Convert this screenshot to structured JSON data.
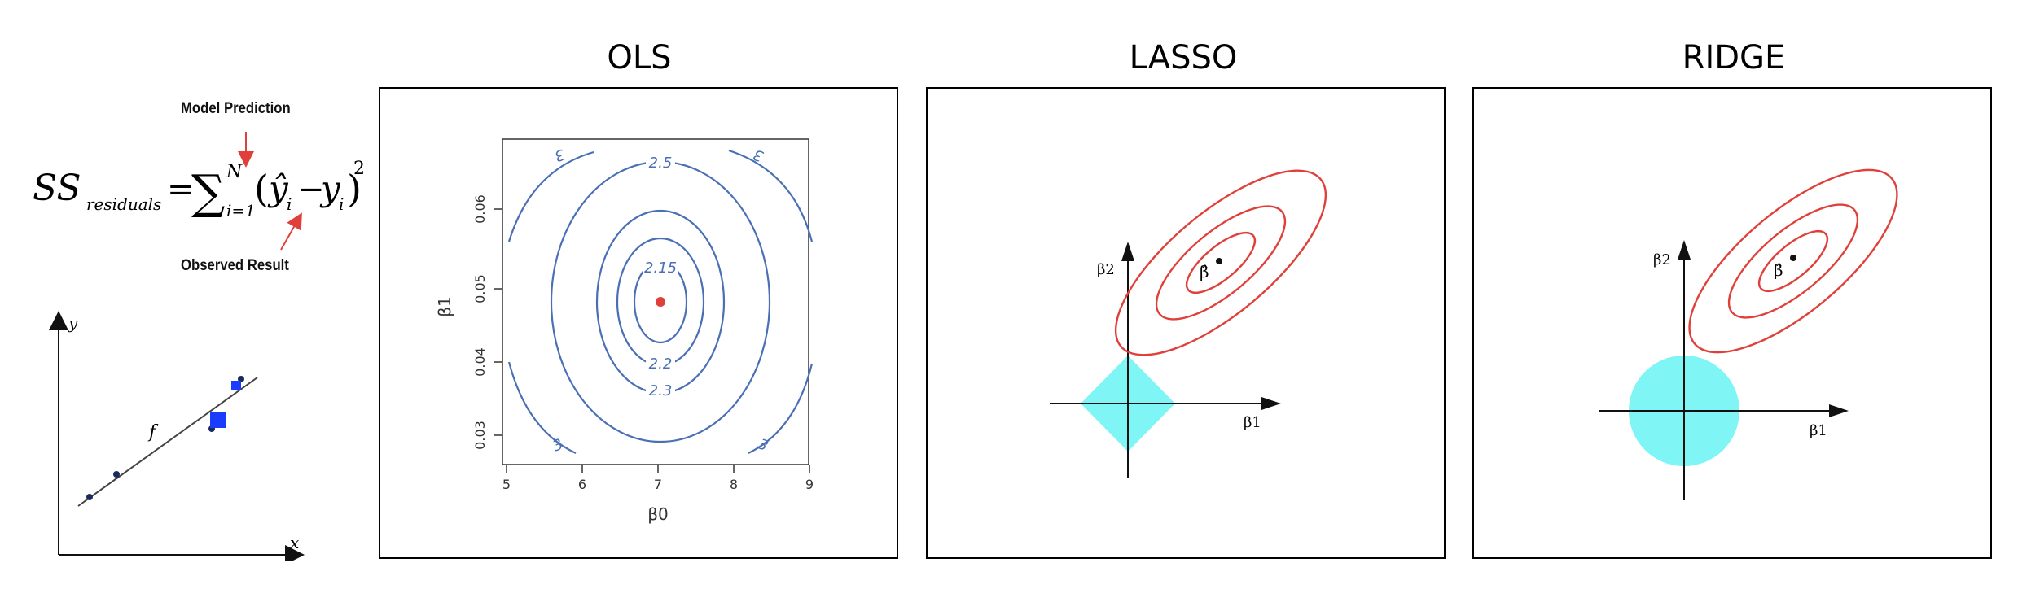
{
  "formula": {
    "lhs": "SS",
    "lhs_subscript": "residuals",
    "equals": "=",
    "sum_symbol": "∑",
    "sum_lower": "i=1",
    "sum_upper": "N",
    "open_paren": "(",
    "prediction_term": "ŷ",
    "prediction_sub": "i",
    "minus": "−",
    "observed_term": "y",
    "observed_sub": "i",
    "close_paren": ")",
    "exponent": "2",
    "annotation_top": "Model Prediction",
    "annotation_bottom": "Observed Result"
  },
  "regression_sketch": {
    "y_label": "y",
    "x_label": "x",
    "line_label": "f"
  },
  "panels": {
    "ols": {
      "title": "OLS",
      "x_label": "β0",
      "y_label": "β1",
      "x_ticks": [
        "5",
        "6",
        "7",
        "8",
        "9"
      ],
      "y_ticks": [
        "0.03",
        "0.04",
        "0.05",
        "0.06"
      ],
      "contour_labels": [
        "2.15",
        "2.2",
        "2.3",
        "2.5",
        "3",
        "3",
        "3",
        "3"
      ]
    },
    "lasso": {
      "title": "LASSO",
      "axis_x_label": "β1",
      "axis_y_label": "β2",
      "estimate_label": "β̂"
    },
    "ridge": {
      "title": "RIDGE",
      "axis_x_label": "β1",
      "axis_y_label": "β2",
      "estimate_label": "β̂"
    }
  },
  "colors": {
    "contour_blue": "#4a6fb5",
    "ellipse_red": "#e0403a",
    "constraint_cyan": "#7ff5f5",
    "annotation_arrow": "#e0403a",
    "point_blue": "#1a3cff"
  }
}
